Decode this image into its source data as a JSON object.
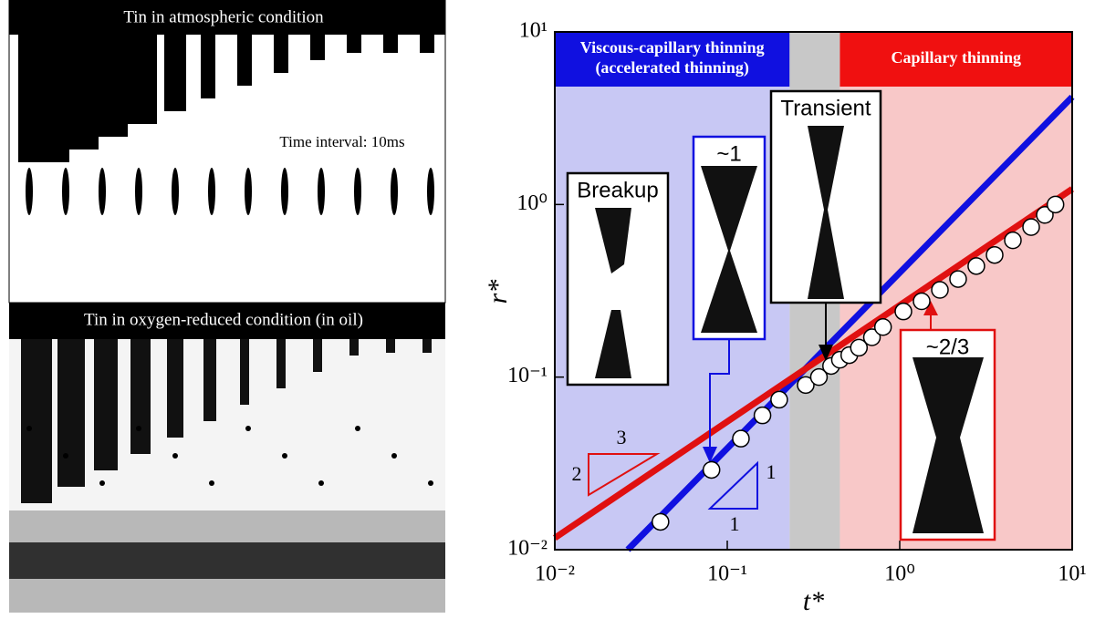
{
  "photo_panels": {
    "top_title": "Tin in atmospheric condition",
    "top_note": "Time interval: 10ms",
    "bottom_title": "Tin in oxygen-reduced condition (in oil)"
  },
  "chart_data": {
    "type": "scatter",
    "x_label": "t*",
    "y_label": "r*",
    "log_x": true,
    "log_y": true,
    "xlim": [
      0.01,
      10
    ],
    "ylim": [
      0.01,
      10
    ],
    "xticks": [
      {
        "value": 0.01,
        "label": "10⁻²"
      },
      {
        "value": 0.1,
        "label": "10⁻¹"
      },
      {
        "value": 1,
        "label": "10⁰"
      },
      {
        "value": 10,
        "label": "10¹"
      }
    ],
    "yticks": [
      {
        "value": 0.01,
        "label": "10⁻²"
      },
      {
        "value": 0.1,
        "label": "10⁻¹"
      },
      {
        "value": 1,
        "label": "10⁰"
      },
      {
        "value": 10,
        "label": "10¹"
      }
    ],
    "marker_color": "#ffffff",
    "x": [
      0.041,
      0.081,
      0.12,
      0.16,
      0.2,
      0.285,
      0.34,
      0.4,
      0.45,
      0.51,
      0.58,
      0.69,
      0.8,
      1.05,
      1.34,
      1.71,
      2.18,
      2.78,
      3.55,
      4.53,
      5.78,
      6.94,
      8.0
    ],
    "values": [
      0.0145,
      0.029,
      0.044,
      0.06,
      0.074,
      0.09,
      0.1,
      0.116,
      0.126,
      0.134,
      0.148,
      0.17,
      0.195,
      0.24,
      0.275,
      0.32,
      0.37,
      0.44,
      0.51,
      0.62,
      0.74,
      0.87,
      1.0
    ],
    "fit_lines": [
      {
        "color": "#1010e0",
        "x": [
          0.0265,
          10
        ],
        "values": [
          0.01,
          4.2
        ]
      },
      {
        "color": "#e01010",
        "x": [
          0.01,
          10
        ],
        "values": [
          0.0117,
          1.23
        ]
      }
    ],
    "regions": [
      {
        "xlim": [
          0.01,
          0.23
        ],
        "color": "#c8c8f4",
        "header_color": "#1010e0",
        "label": [
          "Viscous-capillary thinning",
          "(accelerated thinning)"
        ]
      },
      {
        "xlim": [
          0.23,
          0.45
        ],
        "color": "#c8c8c8",
        "header_color": "#c8c8c8"
      },
      {
        "xlim": [
          0.45,
          10
        ],
        "color": "#f8c8c8",
        "header_color": "#f01010",
        "label": [
          "Capillary thinning"
        ]
      }
    ],
    "annotations": {
      "breakup": "Breakup",
      "slope_one": "~1",
      "transient": "Transient",
      "slope_two_thirds": "~2/3",
      "red_run": "3",
      "red_rise": "2",
      "blue_rise": "1",
      "blue_run": "1"
    }
  }
}
